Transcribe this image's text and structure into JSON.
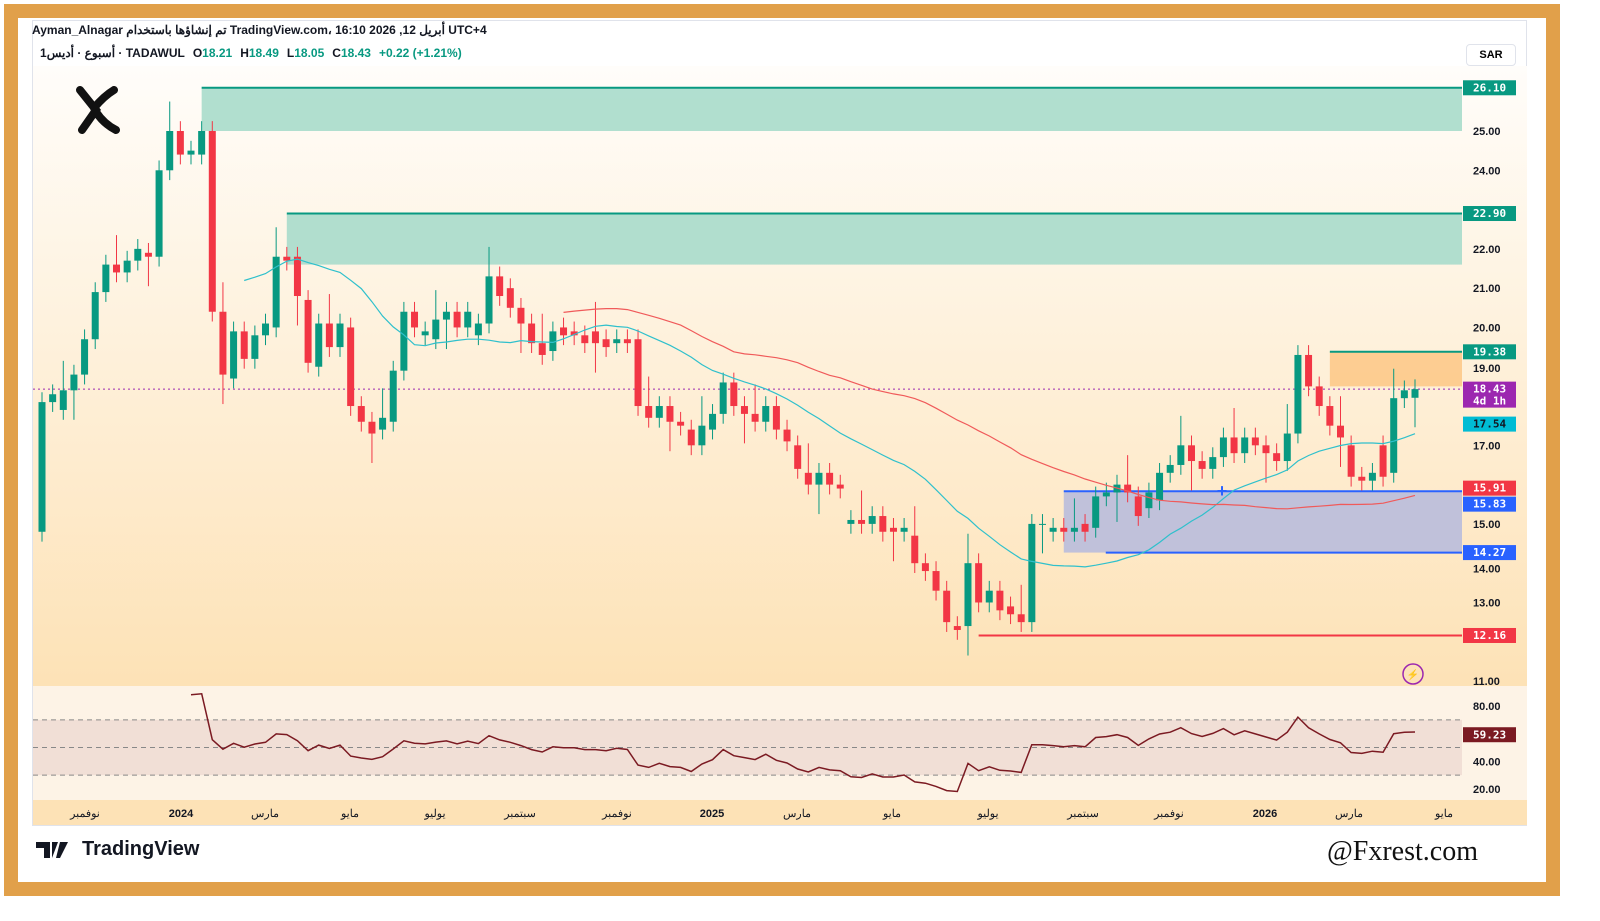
{
  "header": {
    "line1": "Ayman_Alnagar تم إنشاؤها باستخدام TradingView.com، 16:10 2026 ,12 أبريل UTC+4",
    "symbol": "1أسبوع · أديس · TADAWUL",
    "o_label": "O",
    "o": "18.21",
    "h_label": "H",
    "h": "18.49",
    "l_label": "L",
    "l": "18.05",
    "c_label": "C",
    "c": "18.43",
    "change": "+0.22 (+1.21%)"
  },
  "currency": "SAR",
  "brand": "TradingView",
  "watermark": "@Fxrest.com",
  "colors": {
    "up": "#089981",
    "down": "#f23645",
    "ma_fast": "#2fc0cc",
    "ma_slow": "#f05a5a",
    "rsi": "#7b1a22"
  },
  "price_axis": {
    "ticks": [
      "25.00",
      "24.00",
      "22.00",
      "21.00",
      "20.00",
      "19.00",
      "17.00",
      "15.00",
      "14.00",
      "13.00",
      "11.00"
    ]
  },
  "price_labels": [
    {
      "text": "26.10",
      "value": 26.1,
      "bg": "#089981"
    },
    {
      "text": "22.90",
      "value": 22.9,
      "bg": "#089981"
    },
    {
      "text": "19.38",
      "value": 19.38,
      "bg": "#089981"
    },
    {
      "text": "18.43",
      "value": 18.43,
      "bg": "#9c27b0",
      "sub": "4d 1h"
    },
    {
      "text": "17.54",
      "value": 17.54,
      "bg": "#00bcd4",
      "color": "#131722"
    },
    {
      "text": "15.91",
      "value": 15.91,
      "bg": "#f23645"
    },
    {
      "text": "15.83",
      "value": 15.83,
      "bg": "#2962ff"
    },
    {
      "text": "14.27",
      "value": 14.27,
      "bg": "#2962ff"
    },
    {
      "text": "12.16",
      "value": 12.16,
      "bg": "#f23645"
    }
  ],
  "rsi_axis": {
    "ticks": [
      "80.00",
      "40.00",
      "20.00"
    ],
    "value_label": "59.23"
  },
  "time_axis": [
    "نوفمبر",
    "2024",
    "مارس",
    "مايو",
    "يوليو",
    "سبتمبر",
    "نوفمبر",
    "2025",
    "مارس",
    "مايو",
    "يوليو",
    "سبتمبر",
    "نوفمبر",
    "2026",
    "مارس",
    "مايو"
  ],
  "zones": [
    {
      "name": "supply-zone-upper",
      "top": 26.1,
      "bottom": 25.0,
      "start": 15
    },
    {
      "name": "supply-zone-middle",
      "top": 22.9,
      "bottom": 21.6,
      "start": 23
    },
    {
      "name": "resistance-zone",
      "top": 19.38,
      "bottom": 18.5,
      "start": 121
    },
    {
      "name": "demand-zone",
      "top": 15.83,
      "bottom": 14.27,
      "start": 96
    }
  ],
  "support_line": {
    "value": 12.16,
    "start": 88
  },
  "chart_data": {
    "type": "candlestick",
    "timeframe": "1W",
    "oc": [
      [
        14.8,
        18.1
      ],
      [
        18.1,
        18.3
      ],
      [
        17.9,
        18.4
      ],
      [
        18.4,
        18.8
      ],
      [
        18.8,
        19.7
      ],
      [
        19.7,
        20.9
      ],
      [
        20.9,
        21.6
      ],
      [
        21.6,
        21.4
      ],
      [
        21.4,
        21.7
      ],
      [
        21.7,
        22.0
      ],
      [
        21.9,
        21.8
      ],
      [
        21.8,
        24.0
      ],
      [
        24.0,
        25.0
      ],
      [
        25.0,
        24.4
      ],
      [
        24.4,
        24.5
      ],
      [
        24.4,
        25.0
      ],
      [
        25.0,
        20.4
      ],
      [
        20.4,
        18.8
      ],
      [
        18.7,
        19.9
      ],
      [
        19.9,
        19.2
      ],
      [
        19.2,
        19.8
      ],
      [
        19.8,
        20.1
      ],
      [
        20.0,
        21.8
      ],
      [
        21.8,
        21.7
      ],
      [
        21.8,
        20.8
      ],
      [
        20.7,
        19.1
      ],
      [
        19.0,
        20.1
      ],
      [
        20.1,
        19.5
      ],
      [
        19.5,
        20.1
      ],
      [
        20.0,
        18.0
      ],
      [
        18.0,
        17.6
      ],
      [
        17.6,
        17.3
      ],
      [
        17.4,
        17.7
      ],
      [
        17.6,
        18.9
      ],
      [
        18.9,
        20.4
      ],
      [
        20.4,
        20.0
      ],
      [
        19.8,
        19.9
      ],
      [
        19.7,
        20.2
      ],
      [
        20.2,
        20.4
      ],
      [
        20.4,
        20.0
      ],
      [
        20.0,
        20.4
      ],
      [
        19.8,
        20.1
      ],
      [
        20.1,
        21.3
      ],
      [
        21.3,
        20.8
      ],
      [
        21.0,
        20.5
      ],
      [
        20.5,
        20.1
      ],
      [
        20.1,
        19.6
      ],
      [
        19.6,
        19.3
      ],
      [
        19.4,
        19.9
      ],
      [
        20.0,
        19.8
      ],
      [
        19.9,
        19.8
      ],
      [
        19.8,
        19.6
      ],
      [
        19.9,
        19.6
      ],
      [
        19.7,
        19.5
      ],
      [
        19.6,
        19.7
      ],
      [
        19.7,
        19.6
      ],
      [
        19.7,
        18.0
      ],
      [
        18.0,
        17.7
      ],
      [
        17.7,
        18.0
      ],
      [
        18.0,
        17.6
      ],
      [
        17.6,
        17.5
      ],
      [
        17.4,
        17.0
      ],
      [
        17.0,
        17.5
      ],
      [
        17.4,
        17.8
      ],
      [
        17.8,
        18.6
      ],
      [
        18.6,
        18.0
      ],
      [
        18.0,
        17.8
      ],
      [
        17.8,
        17.6
      ],
      [
        17.6,
        18.0
      ],
      [
        18.0,
        17.4
      ],
      [
        17.4,
        17.1
      ],
      [
        17.0,
        16.4
      ],
      [
        16.3,
        16.0
      ],
      [
        16.0,
        16.3
      ],
      [
        16.3,
        16.0
      ],
      [
        16.0,
        15.9
      ],
      [
        15.0,
        15.1
      ],
      [
        15.1,
        15.0
      ],
      [
        15.0,
        15.2
      ],
      [
        15.2,
        14.8
      ],
      [
        14.9,
        14.8
      ],
      [
        14.8,
        14.9
      ],
      [
        14.7,
        14.0
      ],
      [
        14.0,
        13.8
      ],
      [
        13.8,
        13.3
      ],
      [
        13.3,
        12.5
      ],
      [
        12.4,
        12.3
      ],
      [
        12.4,
        14.0
      ],
      [
        14.0,
        13.0
      ],
      [
        13.0,
        13.3
      ],
      [
        13.3,
        12.8
      ],
      [
        12.9,
        12.7
      ],
      [
        12.7,
        12.5
      ],
      [
        12.5,
        15.0
      ],
      [
        15.0,
        15.0
      ],
      [
        14.8,
        14.9
      ],
      [
        14.9,
        14.8
      ],
      [
        14.8,
        14.9
      ],
      [
        15.0,
        14.8
      ],
      [
        14.9,
        15.7
      ],
      [
        15.7,
        15.8
      ],
      [
        15.8,
        16.0
      ],
      [
        16.0,
        15.8
      ],
      [
        15.7,
        15.2
      ],
      [
        15.4,
        15.8
      ],
      [
        15.6,
        16.3
      ],
      [
        16.3,
        16.5
      ],
      [
        16.5,
        17.0
      ],
      [
        17.0,
        16.6
      ],
      [
        16.6,
        16.4
      ],
      [
        16.4,
        16.7
      ],
      [
        16.7,
        17.2
      ],
      [
        17.2,
        16.8
      ],
      [
        16.8,
        17.2
      ],
      [
        17.2,
        17.0
      ],
      [
        17.0,
        16.8
      ],
      [
        16.8,
        16.6
      ],
      [
        16.6,
        17.3
      ],
      [
        17.3,
        19.3
      ],
      [
        19.3,
        18.5
      ],
      [
        18.5,
        18.0
      ],
      [
        18.0,
        17.5
      ],
      [
        17.5,
        17.2
      ],
      [
        17.0,
        16.2
      ],
      [
        16.2,
        16.1
      ],
      [
        16.1,
        16.3
      ],
      [
        17.0,
        16.2
      ],
      [
        16.3,
        18.2
      ],
      [
        18.2,
        18.4
      ],
      [
        18.21,
        18.43
      ]
    ],
    "ylim": [
      11,
      26.5
    ],
    "rsi_ylim": [
      10,
      90
    ],
    "ma_periods": [
      20,
      50
    ],
    "rsi_period": 14
  }
}
